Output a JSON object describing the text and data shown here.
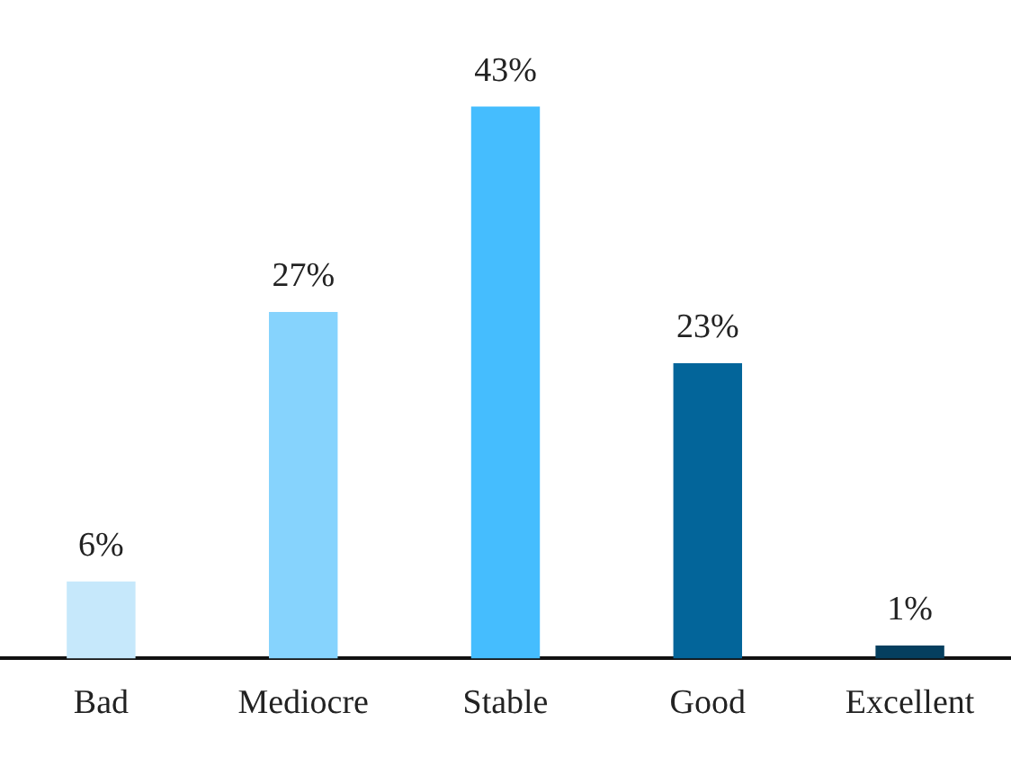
{
  "chart_data": {
    "type": "bar",
    "categories": [
      "Bad",
      "Mediocre",
      "Stable",
      "Good",
      "Excellent"
    ],
    "values": [
      6,
      27,
      43,
      23,
      1
    ],
    "colors": [
      "#c6e8fb",
      "#86d3fd",
      "#45bdfe",
      "#03659a",
      "#053f5f"
    ],
    "value_labels": [
      "6%",
      "27%",
      "43%",
      "23%",
      "1%"
    ],
    "grid": false,
    "legend": false
  }
}
